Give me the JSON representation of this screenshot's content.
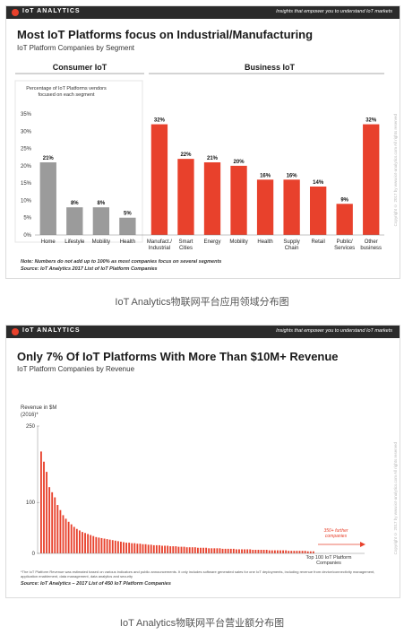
{
  "slide1": {
    "brand": "IoT ANALYTICS",
    "tagline": "Insights that empower you to understand IoT markets",
    "title": "Most IoT Platforms focus on Industrial/Manufacturing",
    "subtitle": "IoT Platform Companies by Segment",
    "segment_consumer": "Consumer IoT",
    "segment_business": "Business IoT",
    "y_axis_note": "Percentage of IoT Platforms vendors focused on each segment",
    "note": "Note: Numbers do not add up to 100% as most companies focus on several segments",
    "source": "Source: IoT Analytics 2017 List of IoT Platform Companies",
    "copyright": "Copyright © 2017 by www.iot-analytics.com All rights reserved",
    "colors": {
      "consumer": "#9b9b9b",
      "business": "#e8412c"
    }
  },
  "caption1": "IoT Analytics物联网平台应用领域分布图",
  "slide2": {
    "brand": "IoT ANALYTICS",
    "tagline": "Insights that empower you to understand IoT markets",
    "title": "Only 7% Of IoT Platforms With More Than $10M+ Revenue",
    "subtitle": "IoT Platform Companies by Revenue",
    "y_label": "Revenue in $M (2016)*",
    "x_label": "Top 100 IoT Platform Companies",
    "annotation": "350+ further companies",
    "footnote": "*The IoT Platform Revenue was estimated based on various indicators and public announcements. It only includes software generated sales for one IoT deployments, including revenue from device/connectivity management, application enablement, data management, data analytics and security",
    "source": "Source: IoT Analytics – 2017 List of 450 IoT Platform Companies",
    "copyright": "Copyright © 2017 by www.iot-analytics.com All rights reserved",
    "colors": {
      "bar": "#e8412c"
    }
  },
  "caption2": "IoT Analytics物联网平台营业额分布图",
  "chart_data": [
    {
      "type": "bar",
      "categories": [
        "Home",
        "Lifestyle",
        "Mobility",
        "Health",
        "Manufact./ Industrial",
        "Smart Cities",
        "Energy",
        "Mobility",
        "Health",
        "Supply Chain",
        "Retail",
        "Public/ Services",
        "Other business"
      ],
      "values": [
        21,
        8,
        8,
        5,
        32,
        22,
        21,
        20,
        16,
        16,
        14,
        9,
        32
      ],
      "value_labels": [
        "21%",
        "8%",
        "8%",
        "5%",
        "32%",
        "22%",
        "21%",
        "20%",
        "16%",
        "16%",
        "14%",
        "9%",
        "32%"
      ],
      "groups": [
        "consumer",
        "consumer",
        "consumer",
        "consumer",
        "business",
        "business",
        "business",
        "business",
        "business",
        "business",
        "business",
        "business",
        "business"
      ],
      "yticks": [
        "0%",
        "5%",
        "10%",
        "15%",
        "20%",
        "25%",
        "30%",
        "35%"
      ],
      "ylim": [
        0,
        35
      ],
      "grid": false
    },
    {
      "type": "bar",
      "x_count": 100,
      "values": [
        200,
        180,
        160,
        130,
        120,
        110,
        95,
        85,
        75,
        68,
        62,
        57,
        52,
        48,
        45,
        42,
        40,
        38,
        36,
        34,
        32,
        31,
        30,
        29,
        28,
        27,
        26,
        25,
        24,
        23,
        22,
        21,
        21,
        20,
        20,
        19,
        19,
        18,
        18,
        17,
        17,
        16,
        16,
        16,
        15,
        15,
        15,
        14,
        14,
        14,
        13,
        13,
        13,
        12,
        12,
        12,
        12,
        11,
        11,
        11,
        11,
        10,
        10,
        10,
        10,
        10,
        9,
        9,
        9,
        9,
        9,
        8,
        8,
        8,
        8,
        8,
        8,
        7,
        7,
        7,
        7,
        7,
        7,
        6,
        6,
        6,
        6,
        6,
        6,
        6,
        5,
        5,
        5,
        5,
        5,
        5,
        5,
        4,
        4,
        4
      ],
      "yticks": [
        "0",
        "100",
        "250"
      ],
      "ylim": [
        0,
        250
      ],
      "grid": false
    }
  ]
}
